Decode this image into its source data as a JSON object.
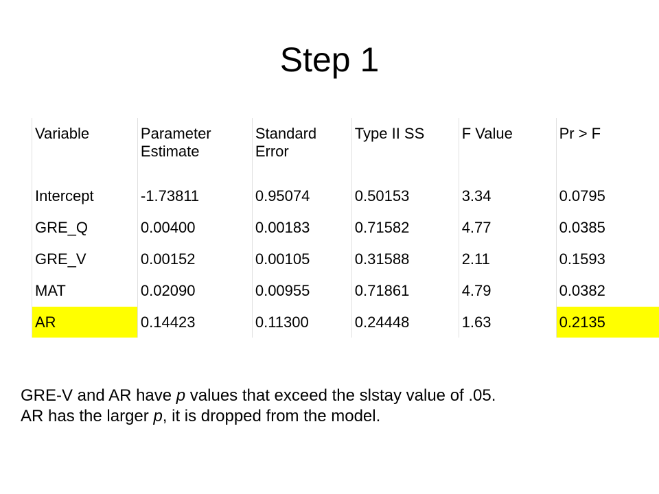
{
  "title": "Step 1",
  "table": {
    "header": [
      "Variable",
      "Parameter Estimate",
      "Standard Error",
      "Type II SS",
      "F Value",
      "Pr > F"
    ],
    "rows": [
      [
        "Intercept",
        "-1.73811",
        "0.95074",
        "0.50153",
        "3.34",
        "0.0795"
      ],
      [
        "GRE_Q",
        "0.00400",
        "0.00183",
        "0.71582",
        "4.77",
        "0.0385"
      ],
      [
        "GRE_V",
        "0.00152",
        "0.00105",
        "0.31588",
        "2.11",
        "0.1593"
      ],
      [
        "MAT",
        "0.02090",
        "0.00955",
        "0.71861",
        "4.79",
        "0.0382"
      ],
      [
        "AR",
        "0.14423",
        "0.11300",
        "0.24448",
        "1.63",
        "0.2135"
      ]
    ]
  },
  "notes": [
    [
      "GRE-V and AR have ",
      "p",
      " values that exceed the slstay value of .05."
    ],
    [
      "AR has the larger ",
      "p",
      ", it is dropped from the model."
    ]
  ]
}
